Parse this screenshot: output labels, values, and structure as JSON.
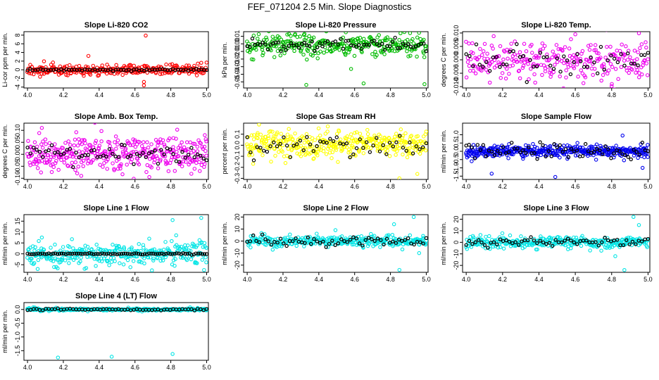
{
  "figure": {
    "title": "FEF_071204  2.5 Min. Slope Diagnostics"
  },
  "chart_data": [
    {
      "type": "scatter",
      "title": "Slope Li-820 CO2",
      "ylabel": "Li-cor ppm per min.",
      "color": "#ff0000",
      "xlim": [
        3.98,
        5.01
      ],
      "ylim": [
        -4.2,
        8.8
      ],
      "xticks": [
        "4.0",
        "4.2",
        "4.4",
        "4.6",
        "4.8",
        "5.0"
      ],
      "yticks": [
        "-4",
        "-2",
        "0",
        "2",
        "4",
        "6",
        "8"
      ],
      "ytick_values": [
        -4,
        -2,
        0,
        2,
        4,
        6,
        8
      ],
      "colored_series": {
        "n": 300,
        "spread": 0.55,
        "center": 0,
        "seed": 11,
        "outliers": [
          [
            4.66,
            7.9
          ],
          [
            4.65,
            -3.6
          ],
          [
            4.65,
            -2.8
          ],
          [
            4.34,
            3.2
          ],
          [
            4.07,
            -1.6
          ]
        ]
      },
      "black_series": {
        "n": 70,
        "spread": 0.12,
        "center": 0,
        "seed": 12
      }
    },
    {
      "type": "scatter",
      "title": "Slope Li-820 Pressure",
      "ylabel": "kPa per min.",
      "color": "#00bb00",
      "xlim": [
        3.98,
        5.01
      ],
      "ylim": [
        -0.058,
        0.016
      ],
      "xticks": [
        "4.0",
        "4.2",
        "4.4",
        "4.6",
        "4.8",
        "5.0"
      ],
      "yticks": [
        "-0.05",
        "-0.04",
        "-0.03",
        "-0.02",
        "-0.01",
        "0.00",
        "0.01"
      ],
      "ytick_values": [
        -0.05,
        -0.04,
        -0.03,
        -0.02,
        -0.01,
        0.0,
        0.01
      ],
      "colored_series": {
        "n": 320,
        "spread": 0.007,
        "center": -0.001,
        "seed": 21,
        "outliers": [
          [
            4.33,
            -0.054
          ],
          [
            4.65,
            -0.052
          ],
          [
            4.99,
            -0.053
          ],
          [
            4.32,
            0.013
          ],
          [
            4.58,
            -0.033
          ]
        ]
      },
      "black_series": {
        "n": 70,
        "spread": 0.004,
        "center": -0.002,
        "seed": 22
      }
    },
    {
      "type": "scatter",
      "title": "Slope Li-820 Temp.",
      "ylabel": "degrees C per min.",
      "color": "#ee00ee",
      "xlim": [
        3.98,
        5.01
      ],
      "ylim": [
        -0.0105,
        0.0105
      ],
      "xticks": [
        "4.0",
        "4.2",
        "4.4",
        "4.6",
        "4.8",
        "5.0"
      ],
      "yticks": [
        "-0.010",
        "-0.005",
        "0.000",
        "0.005",
        "0.010"
      ],
      "ytick_values": [
        -0.01,
        -0.005,
        0.0,
        0.005,
        0.01
      ],
      "colored_series": {
        "n": 280,
        "spread": 0.0032,
        "center": 0,
        "seed": 31,
        "outliers": [
          [
            4.8,
            -0.0098
          ],
          [
            4.95,
            0.0099
          ],
          [
            4.6,
            0.0095
          ],
          [
            4.13,
            -0.0085
          ]
        ]
      },
      "black_series": {
        "n": 55,
        "spread": 0.003,
        "center": 0,
        "seed": 32
      }
    },
    {
      "type": "scatter",
      "title": "Slope Amb. Box Temp.",
      "ylabel": "degrees C per min.",
      "color": "#ee00ee",
      "xlim": [
        3.98,
        5.01
      ],
      "ylim": [
        -0.105,
        0.13
      ],
      "xticks": [
        "4.0",
        "4.2",
        "4.4",
        "4.6",
        "4.8",
        "5.0"
      ],
      "yticks": [
        "-0.10",
        "-0.05",
        "0.00",
        "0.05",
        "0.10"
      ],
      "ytick_values": [
        -0.1,
        -0.05,
        0.0,
        0.05,
        0.1
      ],
      "colored_series": {
        "n": 380,
        "spread": 0.035,
        "center": 0,
        "seed": 41,
        "outliers": [
          [
            4.08,
            0.11
          ],
          [
            4.3,
            -0.09
          ],
          [
            4.68,
            -0.095
          ],
          [
            4.99,
            0.08
          ]
        ]
      },
      "black_series": {
        "n": 60,
        "spread": 0.02,
        "center": 0,
        "seed": 42
      }
    },
    {
      "type": "scatter",
      "title": "Slope Gas Stream RH",
      "ylabel": "percent per min.",
      "color": "#ffff00",
      "xlim": [
        3.98,
        5.01
      ],
      "ylim": [
        -0.31,
        0.2
      ],
      "xticks": [
        "4.0",
        "4.2",
        "4.4",
        "4.6",
        "4.8",
        "5.0"
      ],
      "yticks": [
        "-0.3",
        "-0.2",
        "-0.1",
        "0.0",
        "0.1"
      ],
      "ytick_values": [
        -0.3,
        -0.2,
        -0.1,
        0.0,
        0.1
      ],
      "colored_series": {
        "n": 380,
        "spread": 0.06,
        "center": 0.01,
        "seed": 51,
        "outliers": [
          [
            4.85,
            -0.3
          ],
          [
            4.45,
            0.17
          ],
          [
            4.95,
            -0.26
          ]
        ]
      },
      "black_series": {
        "n": 55,
        "spread": 0.05,
        "center": -0.01,
        "seed": 52
      }
    },
    {
      "type": "scatter",
      "title": "Slope Sample Flow",
      "ylabel": "ml/min per min.",
      "color": "#0000ee",
      "xlim": [
        3.98,
        5.01
      ],
      "ylim": [
        -1.7,
        1.7
      ],
      "xticks": [
        "4.0",
        "4.2",
        "4.4",
        "4.6",
        "4.8",
        "5.0"
      ],
      "yticks": [
        "-1.5",
        "-1.0",
        "-0.5",
        "0.0",
        "0.5",
        "1.0"
      ],
      "ytick_values": [
        -1.5,
        -1.0,
        -0.5,
        0.0,
        0.5,
        1.0
      ],
      "colored_series": {
        "n": 420,
        "spread": 0.17,
        "center": 0,
        "seed": 61,
        "outliers": [
          [
            4.49,
            -1.55
          ],
          [
            4.14,
            -1.35
          ],
          [
            4.97,
            -1.0
          ],
          [
            4.03,
            -0.6
          ],
          [
            4.86,
            0.95
          ]
        ]
      },
      "black_series": {
        "n": 65,
        "spread": 0.22,
        "center": 0.05,
        "seed": 62
      }
    },
    {
      "type": "scatter",
      "title": "Slope Line 1 Flow",
      "ylabel": "ml/min per min.",
      "color": "#00e5e5",
      "xlim": [
        3.98,
        5.01
      ],
      "ylim": [
        -8.5,
        18
      ],
      "xticks": [
        "4.0",
        "4.2",
        "4.4",
        "4.6",
        "4.8",
        "5.0"
      ],
      "yticks": [
        "-5",
        "0",
        "5",
        "10",
        "15"
      ],
      "ytick_values": [
        -5,
        0,
        5,
        10,
        15
      ],
      "colored_series": {
        "n": 330,
        "spread": 2.4,
        "center": 0,
        "seed": 71,
        "outliers": [
          [
            4.81,
            15.5
          ],
          [
            4.97,
            16.5
          ],
          [
            4.83,
            8.5
          ],
          [
            4.08,
            7.5
          ]
        ]
      },
      "black_series": {
        "n": 85,
        "spread": 0.15,
        "center": 0,
        "seed": 72
      }
    },
    {
      "type": "scatter",
      "title": "Slope Line 2 Flow",
      "ylabel": "ml/min per min.",
      "color": "#00e5e5",
      "xlim": [
        3.98,
        5.01
      ],
      "ylim": [
        -26,
        22
      ],
      "xticks": [
        "4.0",
        "4.2",
        "4.4",
        "4.6",
        "4.8",
        "5.0"
      ],
      "yticks": [
        "-20",
        "-10",
        "0",
        "10",
        "20"
      ],
      "ytick_values": [
        -20,
        -10,
        0,
        10,
        20
      ],
      "colored_series": {
        "n": 320,
        "spread": 2.2,
        "center": 0,
        "seed": 81,
        "outliers": [
          [
            4.93,
            20
          ],
          [
            4.85,
            -24
          ],
          [
            4.82,
            14
          ],
          [
            4.96,
            -10
          ]
        ]
      },
      "black_series": {
        "n": 60,
        "spread": 2.0,
        "center": 0,
        "seed": 82
      }
    },
    {
      "type": "scatter",
      "title": "Slope Line 3 Flow",
      "ylabel": "ml/min per min.",
      "color": "#00e5e5",
      "xlim": [
        3.98,
        5.01
      ],
      "ylim": [
        -26,
        24
      ],
      "xticks": [
        "4.0",
        "4.2",
        "4.4",
        "4.6",
        "4.8",
        "5.0"
      ],
      "yticks": [
        "-20",
        "-10",
        "0",
        "10",
        "20"
      ],
      "ytick_values": [
        -20,
        -10,
        0,
        10,
        20
      ],
      "colored_series": {
        "n": 330,
        "spread": 2.4,
        "center": 0,
        "seed": 91,
        "outliers": [
          [
            4.92,
            22
          ],
          [
            4.87,
            -24
          ],
          [
            4.95,
            15
          ],
          [
            4.82,
            -12
          ]
        ]
      },
      "black_series": {
        "n": 60,
        "spread": 2.0,
        "center": 0,
        "seed": 92
      }
    },
    {
      "type": "scatter",
      "title": "Slope Line 4 (LT) Flow",
      "ylabel": "ml/min per min.",
      "color": "#00e5e5",
      "xlim": [
        3.98,
        5.01
      ],
      "ylim": [
        -1.85,
        0.25
      ],
      "xticks": [
        "4.0",
        "4.2",
        "4.4",
        "4.6",
        "4.8",
        "5.0"
      ],
      "yticks": [
        "-1.5",
        "-1.0",
        "-0.5",
        "0.0"
      ],
      "ytick_values": [
        -1.5,
        -1.0,
        -0.5,
        0.0
      ],
      "colored_series": {
        "n": 300,
        "spread": 0.02,
        "center": 0,
        "seed": 101,
        "outliers": [
          [
            4.17,
            -1.75
          ],
          [
            4.47,
            -1.72
          ],
          [
            4.81,
            -1.62
          ],
          [
            4.12,
            -0.06
          ]
        ]
      },
      "black_series": {
        "n": 60,
        "spread": 0.015,
        "center": 0,
        "seed": 102
      }
    }
  ]
}
